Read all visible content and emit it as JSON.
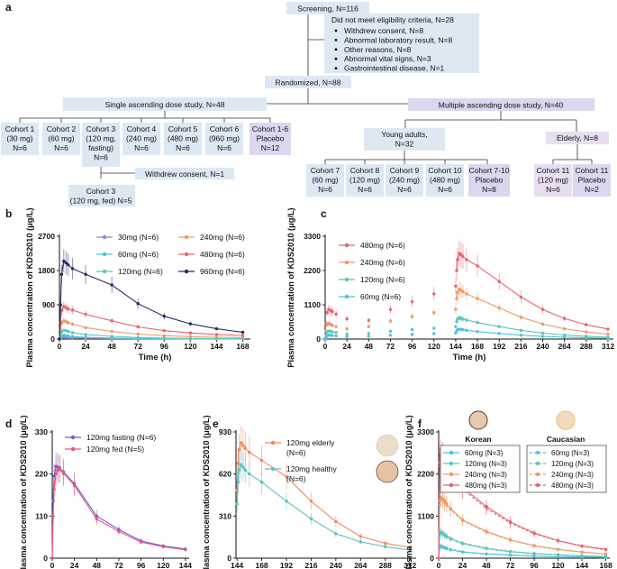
{
  "flow": {
    "panel_label": "a",
    "screening": "Screening, N=116",
    "excluded": {
      "title": "Did not meet eligibility criteria, N=28",
      "reasons": [
        "Withdrew consent, N=8",
        "Abnormal laboratory result, N=8",
        "Other reasons, N=8",
        "Abnormal vital signs, N=3",
        "Gastrointestinal disease, N=1"
      ]
    },
    "randomized": "Randomized, N=88",
    "sad": {
      "title": "Single ascending dose study, N=48",
      "cohorts": [
        [
          "Cohort 1",
          "(30 mg)",
          "N=6"
        ],
        [
          "Cohort 2",
          "(60 mg)",
          "N=6"
        ],
        [
          "Cohort 3",
          "(120 mg,",
          "fasting)",
          "N=6"
        ],
        [
          "Cohort 4",
          "(240 mg)",
          "N=6"
        ],
        [
          "Cohort 5",
          "(480 mg)",
          "N=6"
        ],
        [
          "Cohort 6",
          "(960 mg)",
          "N=6"
        ],
        [
          "Cohort 1-6",
          "Placebo",
          "N=12"
        ]
      ],
      "withdrew": "Withdrew consent, N=1",
      "fed": [
        "Cohort 3",
        "(120 mg, fed) N=5"
      ]
    },
    "mad": {
      "title": "Multiple ascending dose study, N=40",
      "young": [
        "Young adults,",
        "N=32"
      ],
      "elderly": "Elderly, N=8",
      "young_cohorts": [
        [
          "Cohort 7",
          "(60 mg)",
          "N=6"
        ],
        [
          "Cohort 8",
          "(120 mg)",
          "N=6"
        ],
        [
          "Cohort 9",
          "(240 mg)",
          "N=6"
        ],
        [
          "Cohort 10",
          "(480 mg)",
          "N=6"
        ],
        [
          "Cohort 7-10",
          "Placebo",
          "N=8"
        ]
      ],
      "elderly_cohorts": [
        [
          "Cohort 11",
          "(120 mg)",
          "N=6"
        ],
        [
          "Cohort 11",
          "Placebo",
          "N=2"
        ]
      ]
    }
  },
  "colors": {
    "box_light": "#dde8f3",
    "box_purple": "#dcd6ef",
    "box_mad_elderly": "#e9ddf1",
    "d30": "#9b7fd1",
    "d60": "#4ec3dd",
    "d120": "#5cc6b8",
    "d240": "#ef9a6a",
    "d480": "#e8636f",
    "d960": "#262a66",
    "fasting": "#6c5ed8",
    "fed": "#e8567a",
    "elderly": "#ef8a5a",
    "healthy": "#5cc1bf"
  },
  "chart_data": [
    {
      "panel": "b",
      "type": "line",
      "xlabel": "Time (h)",
      "ylabel": "Plasma concentration of KDS2010 (μg/L)",
      "xlim": [
        0,
        175
      ],
      "xticks": [
        0,
        24,
        48,
        72,
        96,
        120,
        144,
        168
      ],
      "ylim": [
        0,
        2700
      ],
      "yticks": [
        0,
        900,
        1800,
        2700
      ],
      "series": [
        {
          "name": "30mg (N=6)",
          "color": "#9b7fd1",
          "x": [
            0,
            1,
            2,
            4,
            6,
            8,
            12,
            24,
            48,
            72,
            96,
            120,
            144,
            168
          ],
          "y": [
            0,
            20,
            40,
            50,
            45,
            40,
            32,
            22,
            12,
            7,
            4,
            3,
            2,
            1
          ]
        },
        {
          "name": "60mg (N=6)",
          "color": "#4ec3dd",
          "x": [
            0,
            1,
            2,
            4,
            6,
            8,
            12,
            24,
            48,
            72,
            96,
            120,
            144,
            168
          ],
          "y": [
            0,
            40,
            80,
            100,
            90,
            80,
            65,
            45,
            25,
            14,
            9,
            6,
            4,
            3
          ]
        },
        {
          "name": "120mg (N=6)",
          "color": "#5cc6b8",
          "x": [
            0,
            1,
            2,
            4,
            6,
            8,
            12,
            24,
            48,
            72,
            96,
            120,
            144,
            168
          ],
          "y": [
            0,
            100,
            180,
            230,
            220,
            200,
            170,
            120,
            70,
            40,
            25,
            17,
            12,
            9
          ]
        },
        {
          "name": "240mg (N=6)",
          "color": "#ef9a6a",
          "x": [
            0,
            1,
            2,
            4,
            6,
            8,
            12,
            24,
            48,
            72,
            96,
            120,
            144,
            168
          ],
          "y": [
            0,
            250,
            420,
            480,
            460,
            430,
            390,
            300,
            200,
            130,
            90,
            65,
            48,
            38
          ]
        },
        {
          "name": "480mg (N=6)",
          "color": "#e8636f",
          "x": [
            0,
            1,
            2,
            4,
            6,
            8,
            12,
            24,
            48,
            72,
            96,
            120,
            144,
            168
          ],
          "y": [
            0,
            450,
            750,
            860,
            820,
            790,
            760,
            650,
            480,
            320,
            220,
            160,
            120,
            95
          ]
        },
        {
          "name": "960mg (N=6)",
          "color": "#262a66",
          "x": [
            0,
            1,
            2,
            4,
            6,
            8,
            12,
            24,
            48,
            72,
            96,
            120,
            144,
            168
          ],
          "y": [
            0,
            900,
            1700,
            2050,
            2000,
            1950,
            1850,
            1700,
            1420,
            930,
            600,
            400,
            270,
            180
          ]
        }
      ]
    },
    {
      "panel": "c",
      "type": "line",
      "xlabel": "Time (h)",
      "ylabel": "Plasma concentration of KDS2010 (μg/L)",
      "xlim": [
        0,
        318
      ],
      "xticks": [
        0,
        24,
        48,
        72,
        96,
        120,
        144,
        168,
        192,
        216,
        240,
        264,
        288,
        312
      ],
      "ylim": [
        0,
        3300
      ],
      "yticks": [
        0,
        1100,
        2200,
        3300
      ],
      "series": [
        {
          "name": "480mg (N=6)",
          "color": "#e8636f",
          "x": [
            0,
            1,
            2,
            4,
            6,
            8,
            12,
            24,
            48,
            72,
            96,
            120,
            144,
            145,
            146,
            148,
            150,
            152,
            156,
            168,
            192,
            216,
            240,
            264,
            288,
            312
          ],
          "y": [
            0,
            500,
            850,
            950,
            920,
            880,
            800,
            650,
            600,
            950,
            1200,
            1450,
            1700,
            2200,
            2550,
            2750,
            2700,
            2650,
            2550,
            2350,
            1850,
            1350,
            950,
            660,
            460,
            320
          ]
        },
        {
          "name": "240mg (N=6)",
          "color": "#ef9a6a",
          "x": [
            0,
            1,
            2,
            4,
            6,
            8,
            12,
            24,
            48,
            72,
            96,
            120,
            144,
            145,
            146,
            148,
            150,
            152,
            156,
            168,
            192,
            216,
            240,
            264,
            288,
            312
          ],
          "y": [
            0,
            250,
            450,
            500,
            470,
            440,
            400,
            330,
            400,
            580,
            720,
            850,
            950,
            1300,
            1500,
            1600,
            1560,
            1520,
            1450,
            1300,
            1000,
            700,
            480,
            330,
            230,
            160
          ]
        },
        {
          "name": "120mg (N=6)",
          "color": "#5cc6b8",
          "x": [
            0,
            1,
            2,
            4,
            6,
            8,
            12,
            24,
            48,
            72,
            96,
            120,
            144,
            145,
            146,
            148,
            150,
            152,
            156,
            168,
            192,
            216,
            240,
            264,
            288,
            312
          ],
          "y": [
            0,
            130,
            230,
            260,
            250,
            230,
            210,
            160,
            180,
            250,
            300,
            350,
            400,
            560,
            640,
            680,
            660,
            640,
            610,
            530,
            400,
            280,
            190,
            130,
            90,
            60
          ]
        },
        {
          "name": "60mg (N=6)",
          "color": "#4ec3dd",
          "x": [
            0,
            1,
            2,
            4,
            6,
            8,
            12,
            24,
            48,
            72,
            96,
            120,
            144,
            145,
            146,
            148,
            150,
            152,
            156,
            168,
            192,
            216,
            240,
            264,
            288,
            312
          ],
          "y": [
            0,
            60,
            110,
            130,
            125,
            115,
            100,
            80,
            90,
            120,
            150,
            170,
            190,
            260,
            300,
            320,
            310,
            300,
            280,
            240,
            180,
            125,
            85,
            60,
            40,
            28
          ]
        }
      ]
    },
    {
      "panel": "d",
      "type": "line",
      "xlabel": "Time (h)",
      "ylabel": "Plasma concentration of KDS2010 (μg/L)",
      "xlim": [
        0,
        148
      ],
      "xticks": [
        0,
        24,
        48,
        72,
        96,
        120,
        144
      ],
      "ylim": [
        0,
        330
      ],
      "yticks": [
        0,
        110,
        220,
        330
      ],
      "series": [
        {
          "name": "120mg fasting (N=6)",
          "color": "#6c5ed8",
          "x": [
            0,
            1,
            2,
            4,
            6,
            8,
            12,
            24,
            48,
            72,
            96,
            120,
            144
          ],
          "y": [
            0,
            150,
            215,
            240,
            238,
            236,
            226,
            195,
            110,
            75,
            45,
            32,
            24
          ]
        },
        {
          "name": "120mg fed (N=5)",
          "color": "#e8567a",
          "x": [
            0,
            1,
            2,
            4,
            6,
            8,
            12,
            24,
            48,
            72,
            96,
            120,
            144
          ],
          "y": [
            0,
            110,
            180,
            220,
            230,
            232,
            222,
            190,
            102,
            70,
            42,
            30,
            22
          ]
        }
      ]
    },
    {
      "panel": "e",
      "type": "line",
      "xlabel": "Time (h)",
      "ylabel": "Plasma concentration of KDS2010 (μg/L)",
      "xlim": [
        143,
        318
      ],
      "xticks": [
        144,
        168,
        192,
        216,
        240,
        264,
        288,
        312
      ],
      "ylim": [
        0,
        930
      ],
      "yticks": [
        0,
        310,
        620,
        930
      ],
      "series": [
        {
          "name": "120mg elderly (N=6)",
          "color": "#ef8a5a",
          "x": [
            144,
            145,
            146,
            148,
            150,
            152,
            156,
            168,
            192,
            216,
            240,
            264,
            288,
            312
          ],
          "y": [
            500,
            700,
            800,
            850,
            830,
            810,
            780,
            720,
            600,
            420,
            270,
            160,
            110,
            80
          ]
        },
        {
          "name": "120mg healthy (N=6)",
          "color": "#5cc1bf",
          "x": [
            144,
            145,
            146,
            148,
            150,
            152,
            156,
            168,
            192,
            216,
            240,
            264,
            288,
            312
          ],
          "y": [
            400,
            560,
            650,
            690,
            670,
            650,
            620,
            560,
            420,
            290,
            180,
            120,
            85,
            60
          ]
        }
      ]
    },
    {
      "panel": "f",
      "type": "line",
      "xlabel": "Time (h)",
      "ylabel": "Plasma concentration of KDS2010 (μg/L)",
      "xlim": [
        0,
        172
      ],
      "xticks": [
        0,
        24,
        48,
        72,
        96,
        120,
        144,
        168
      ],
      "ylim": [
        0,
        3300
      ],
      "yticks": [
        0,
        1100,
        2200,
        3300
      ],
      "legend_headers": [
        "Korean",
        "Caucasian"
      ],
      "series": [
        {
          "name": "60mg (N=3)",
          "group": "Korean",
          "color": "#4ec3dd",
          "x": [
            0,
            1,
            2,
            4,
            6,
            8,
            12,
            24,
            48,
            72,
            96,
            120,
            144,
            168
          ],
          "y": [
            0,
            280,
            310,
            290,
            270,
            250,
            220,
            160,
            110,
            80,
            55,
            40,
            30,
            20
          ]
        },
        {
          "name": "120mg (N=3)",
          "group": "Korean",
          "color": "#5cc6b8",
          "x": [
            0,
            1,
            2,
            4,
            6,
            8,
            12,
            24,
            48,
            72,
            96,
            120,
            144,
            168
          ],
          "y": [
            0,
            600,
            680,
            640,
            600,
            560,
            500,
            380,
            250,
            170,
            120,
            90,
            60,
            45
          ]
        },
        {
          "name": "240mg (N=3)",
          "group": "Korean",
          "color": "#ef9a6a",
          "x": [
            0,
            1,
            2,
            4,
            6,
            8,
            12,
            24,
            48,
            72,
            96,
            120,
            144,
            168
          ],
          "y": [
            0,
            1500,
            1600,
            1550,
            1500,
            1420,
            1300,
            1000,
            700,
            480,
            330,
            230,
            160,
            110
          ]
        },
        {
          "name": "480mg (N=3)",
          "group": "Korean",
          "color": "#e8636f",
          "x": [
            0,
            1,
            2,
            4,
            6,
            8,
            12,
            24,
            48,
            72,
            96,
            120,
            144,
            168
          ],
          "y": [
            0,
            2500,
            2700,
            2650,
            2550,
            2450,
            2300,
            1850,
            1350,
            950,
            660,
            460,
            320,
            230
          ]
        },
        {
          "name": "60mg (N=3)",
          "group": "Caucasian",
          "color": "#4ec3dd",
          "x": [
            0,
            1,
            2,
            4,
            6,
            8,
            12,
            24,
            48,
            72,
            96,
            120,
            144,
            168
          ],
          "y": [
            0,
            300,
            330,
            310,
            285,
            265,
            235,
            170,
            115,
            85,
            58,
            42,
            32,
            22
          ]
        },
        {
          "name": "120mg (N=3)",
          "group": "Caucasian",
          "color": "#5cc6b8",
          "x": [
            0,
            1,
            2,
            4,
            6,
            8,
            12,
            24,
            48,
            72,
            96,
            120,
            144,
            168
          ],
          "y": [
            0,
            650,
            700,
            660,
            620,
            580,
            520,
            400,
            265,
            180,
            125,
            95,
            65,
            48
          ]
        },
        {
          "name": "240mg (N=3)",
          "group": "Caucasian",
          "color": "#ef9a6a",
          "x": [
            0,
            1,
            2,
            4,
            6,
            8,
            12,
            24,
            48,
            72,
            96,
            120,
            144,
            168
          ],
          "y": [
            0,
            1400,
            1550,
            1500,
            1450,
            1380,
            1270,
            980,
            680,
            470,
            320,
            225,
            155,
            105
          ]
        },
        {
          "name": "480mg (N=3)",
          "group": "Caucasian",
          "color": "#e8636f",
          "x": [
            0,
            1,
            2,
            4,
            6,
            8,
            12,
            24,
            48,
            72,
            96,
            120,
            144,
            168
          ],
          "y": [
            0,
            2400,
            2650,
            2600,
            2500,
            2400,
            2250,
            1800,
            1300,
            920,
            640,
            450,
            310,
            220
          ]
        }
      ]
    }
  ]
}
